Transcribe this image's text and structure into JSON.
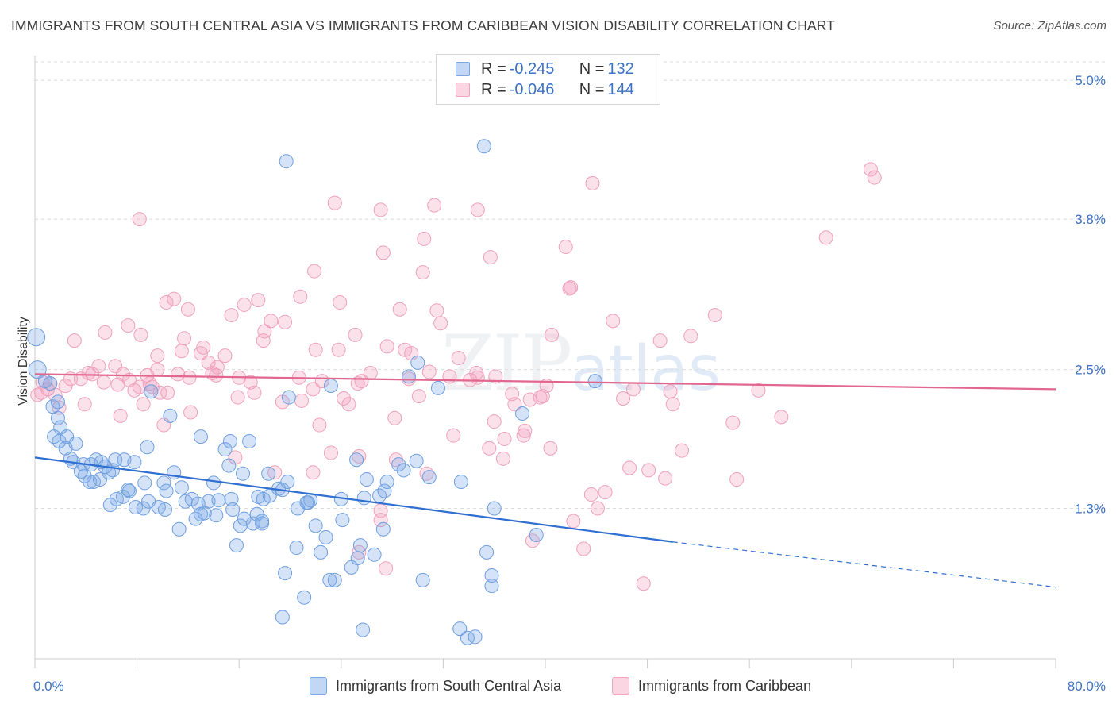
{
  "title": "IMMIGRANTS FROM SOUTH CENTRAL ASIA VS IMMIGRANTS FROM CARIBBEAN VISION DISABILITY CORRELATION CHART",
  "source": "Source: ZipAtlas.com",
  "watermark": {
    "zip": "ZIP",
    "atlas": "atlas"
  },
  "legend": {
    "rows": [
      {
        "r_label": "R = ",
        "r_value": "-0.245",
        "n_label": "N = ",
        "n_value": "132",
        "color": "#7aa7e6"
      },
      {
        "r_label": "R = ",
        "r_value": "-0.046",
        "n_label": "N = ",
        "n_value": "144",
        "color": "#f2a3bd"
      }
    ]
  },
  "bottom_legend": {
    "items": [
      {
        "label": "Immigrants from South Central Asia",
        "color": "#7aa7e6"
      },
      {
        "label": "Immigrants from Caribbean",
        "color": "#f2a3bd"
      }
    ]
  },
  "chart_data": {
    "type": "scatter",
    "title": "IMMIGRANTS FROM SOUTH CENTRAL ASIA VS IMMIGRANTS FROM CARIBBEAN VISION DISABILITY CORRELATION CHART",
    "ylabel": "Vision Disability",
    "xlabel": "",
    "xlim": [
      0,
      80
    ],
    "ylim": [
      0,
      5.2
    ],
    "x_tick_labels": [
      "0.0%",
      "80.0%"
    ],
    "y_ticks": [
      1.3,
      2.5,
      3.8,
      5.0
    ],
    "y_tick_labels": [
      "1.3%",
      "2.5%",
      "3.8%",
      "5.0%"
    ],
    "grid": true,
    "legend_position": "top-center",
    "colors": {
      "blue": "#5b8fd9",
      "pink": "#ee8fb0",
      "blue_line": "#2f6fd1",
      "pink_line": "#e2678f"
    },
    "series": [
      {
        "name": "Immigrants from South Central Asia",
        "color": "#7aa7e6",
        "trend": {
          "x_start": 0,
          "y_start": 1.74,
          "x_end": 50,
          "y_end": 1.01,
          "x_dash_end": 80,
          "y_dash_end": 0.62
        },
        "points": [
          [
            0.1,
            2.78
          ],
          [
            0.2,
            2.5
          ],
          [
            0.8,
            2.4
          ],
          [
            1.2,
            2.38
          ],
          [
            1.4,
            2.18
          ],
          [
            1.8,
            2.22
          ],
          [
            1.5,
            1.92
          ],
          [
            2.0,
            2.0
          ],
          [
            1.9,
            1.88
          ],
          [
            2.5,
            1.92
          ],
          [
            1.8,
            2.08
          ],
          [
            2.4,
            1.82
          ],
          [
            3.2,
            1.86
          ],
          [
            2.8,
            1.73
          ],
          [
            3.0,
            1.7
          ],
          [
            3.6,
            1.62
          ],
          [
            3.9,
            1.58
          ],
          [
            4.3,
            1.53
          ],
          [
            4.6,
            1.53
          ],
          [
            3.8,
            1.68
          ],
          [
            4.8,
            1.72
          ],
          [
            5.2,
            1.7
          ],
          [
            5.5,
            1.66
          ],
          [
            5.8,
            1.61
          ],
          [
            6.1,
            1.63
          ],
          [
            6.3,
            1.72
          ],
          [
            7.0,
            1.72
          ],
          [
            7.8,
            1.7
          ],
          [
            5.1,
            1.55
          ],
          [
            4.4,
            1.68
          ],
          [
            5.9,
            1.33
          ],
          [
            6.4,
            1.38
          ],
          [
            6.9,
            1.4
          ],
          [
            7.4,
            1.45
          ],
          [
            7.9,
            1.31
          ],
          [
            7.3,
            1.46
          ],
          [
            8.5,
            1.3
          ],
          [
            8.9,
            1.36
          ],
          [
            8.6,
            1.52
          ],
          [
            8.8,
            1.83
          ],
          [
            9.1,
            2.31
          ],
          [
            9.7,
            1.31
          ],
          [
            10.2,
            1.29
          ],
          [
            10.1,
            1.52
          ],
          [
            10.3,
            1.45
          ],
          [
            10.9,
            1.61
          ],
          [
            10.6,
            2.1
          ],
          [
            11.5,
            1.48
          ],
          [
            11.8,
            1.36
          ],
          [
            11.3,
            1.12
          ],
          [
            12.3,
            1.38
          ],
          [
            12.8,
            1.34
          ],
          [
            13.0,
            1.25
          ],
          [
            12.6,
            1.21
          ],
          [
            13.3,
            1.26
          ],
          [
            13.0,
            1.92
          ],
          [
            14.0,
            1.52
          ],
          [
            13.6,
            1.36
          ],
          [
            14.2,
            1.24
          ],
          [
            14.4,
            1.37
          ],
          [
            14.9,
            1.81
          ],
          [
            15.3,
            1.88
          ],
          [
            15.2,
            1.67
          ],
          [
            15.4,
            1.38
          ],
          [
            15.5,
            1.29
          ],
          [
            16.1,
            1.15
          ],
          [
            15.8,
            0.98
          ],
          [
            16.3,
            1.6
          ],
          [
            16.4,
            1.21
          ],
          [
            16.8,
            1.88
          ],
          [
            17.1,
            1.17
          ],
          [
            17.5,
            1.4
          ],
          [
            17.4,
            1.25
          ],
          [
            17.8,
            1.19
          ],
          [
            17.9,
            1.38
          ],
          [
            17.8,
            1.17
          ],
          [
            18.3,
            1.6
          ],
          [
            18.4,
            1.41
          ],
          [
            19.1,
            1.47
          ],
          [
            19.4,
            1.46
          ],
          [
            19.6,
            0.74
          ],
          [
            19.4,
            0.36
          ],
          [
            19.7,
            4.3
          ],
          [
            19.9,
            2.26
          ],
          [
            19.8,
            1.53
          ],
          [
            20.5,
            0.96
          ],
          [
            20.6,
            1.3
          ],
          [
            21.1,
            0.53
          ],
          [
            21.4,
            1.35
          ],
          [
            21.3,
            1.35
          ],
          [
            21.6,
            1.37
          ],
          [
            22.0,
            1.15
          ],
          [
            22.4,
            0.92
          ],
          [
            22.8,
            1.05
          ],
          [
            23.1,
            0.68
          ],
          [
            23.5,
            0.68
          ],
          [
            23.2,
            2.36
          ],
          [
            24.1,
            1.2
          ],
          [
            24.0,
            1.38
          ],
          [
            24.8,
            0.79
          ],
          [
            25.2,
            1.72
          ],
          [
            25.5,
            0.98
          ],
          [
            25.3,
            0.87
          ],
          [
            25.7,
            0.25
          ],
          [
            25.8,
            1.39
          ],
          [
            26.0,
            1.55
          ],
          [
            26.6,
            0.9
          ],
          [
            27.0,
            1.41
          ],
          [
            27.3,
            1.12
          ],
          [
            27.4,
            1.45
          ],
          [
            27.6,
            1.53
          ],
          [
            28.5,
            1.68
          ],
          [
            28.9,
            1.63
          ],
          [
            29.3,
            2.44
          ],
          [
            29.9,
            1.71
          ],
          [
            30.0,
            2.56
          ],
          [
            30.4,
            0.68
          ],
          [
            30.9,
            1.57
          ],
          [
            31.6,
            2.34
          ],
          [
            33.3,
            0.26
          ],
          [
            33.4,
            1.53
          ],
          [
            33.9,
            0.18
          ],
          [
            34.5,
            0.19
          ],
          [
            35.2,
            4.43
          ],
          [
            35.4,
            0.92
          ],
          [
            35.8,
            0.63
          ],
          [
            35.8,
            0.72
          ],
          [
            36.0,
            1.3
          ],
          [
            38.2,
            2.12
          ],
          [
            39.3,
            1.07
          ],
          [
            43.9,
            2.4
          ]
        ]
      },
      {
        "name": "Immigrants from Caribbean",
        "color": "#f2a3bd",
        "trend": {
          "x_start": 0,
          "y_start": 2.46,
          "x_end": 80,
          "y_end": 2.33
        },
        "points": [
          [
            0.2,
            2.28
          ],
          [
            0.5,
            2.3
          ],
          [
            0.6,
            2.39
          ],
          [
            1.2,
            2.38
          ],
          [
            1.0,
            2.33
          ],
          [
            1.6,
            2.28
          ],
          [
            1.9,
            2.17
          ],
          [
            2.4,
            2.36
          ],
          [
            2.8,
            2.42
          ],
          [
            3.1,
            2.75
          ],
          [
            3.6,
            2.42
          ],
          [
            3.9,
            2.2
          ],
          [
            4.2,
            2.47
          ],
          [
            4.5,
            2.46
          ],
          [
            5.0,
            2.53
          ],
          [
            5.4,
            2.39
          ],
          [
            5.5,
            2.82
          ],
          [
            6.3,
            2.53
          ],
          [
            6.5,
            2.37
          ],
          [
            6.7,
            2.1
          ],
          [
            6.9,
            2.46
          ],
          [
            7.3,
            2.88
          ],
          [
            7.4,
            2.41
          ],
          [
            7.8,
            2.32
          ],
          [
            8.2,
            2.35
          ],
          [
            8.2,
            3.8
          ],
          [
            8.3,
            2.8
          ],
          [
            8.5,
            2.2
          ],
          [
            8.8,
            2.45
          ],
          [
            9.0,
            2.38
          ],
          [
            9.2,
            2.35
          ],
          [
            9.6,
            2.5
          ],
          [
            9.6,
            2.62
          ],
          [
            9.8,
            2.3
          ],
          [
            10.1,
            2.02
          ],
          [
            10.4,
            2.3
          ],
          [
            10.3,
            3.08
          ],
          [
            10.9,
            3.11
          ],
          [
            11.2,
            2.46
          ],
          [
            11.5,
            2.66
          ],
          [
            11.7,
            2.77
          ],
          [
            12.0,
            3.02
          ],
          [
            12.1,
            2.43
          ],
          [
            12.2,
            2.13
          ],
          [
            13.0,
            2.64
          ],
          [
            13.2,
            2.69
          ],
          [
            13.6,
            2.56
          ],
          [
            13.9,
            2.47
          ],
          [
            14.2,
            2.45
          ],
          [
            14.3,
            2.52
          ],
          [
            14.9,
            2.62
          ],
          [
            15.4,
            2.97
          ],
          [
            15.7,
            1.74
          ],
          [
            15.9,
            2.26
          ],
          [
            16.0,
            2.43
          ],
          [
            16.4,
            3.06
          ],
          [
            16.9,
            2.39
          ],
          [
            17.2,
            2.3
          ],
          [
            17.5,
            3.1
          ],
          [
            17.9,
            2.75
          ],
          [
            18.0,
            2.83
          ],
          [
            18.5,
            2.92
          ],
          [
            18.8,
            1.61
          ],
          [
            19.4,
            2.22
          ],
          [
            19.6,
            2.91
          ],
          [
            20.7,
            2.43
          ],
          [
            20.8,
            3.13
          ],
          [
            20.9,
            2.23
          ],
          [
            21.8,
            2.33
          ],
          [
            21.8,
            1.61
          ],
          [
            21.9,
            3.35
          ],
          [
            22.0,
            2.67
          ],
          [
            22.3,
            2.02
          ],
          [
            22.5,
            2.4
          ],
          [
            23.2,
            1.78
          ],
          [
            23.5,
            3.94
          ],
          [
            23.9,
            3.08
          ],
          [
            23.8,
            2.67
          ],
          [
            24.6,
            2.2
          ],
          [
            24.2,
            2.25
          ],
          [
            25.1,
            2.8
          ],
          [
            25.3,
            2.38
          ],
          [
            25.4,
            1.75
          ],
          [
            25.4,
            0.92
          ],
          [
            25.6,
            2.4
          ],
          [
            26.3,
            2.47
          ],
          [
            27.1,
            1.28
          ],
          [
            27.1,
            1.2
          ],
          [
            27.1,
            3.88
          ],
          [
            27.3,
            3.51
          ],
          [
            27.5,
            0.78
          ],
          [
            27.6,
            2.7
          ],
          [
            28.2,
            2.08
          ],
          [
            28.3,
            1.72
          ],
          [
            28.6,
            3.02
          ],
          [
            29.0,
            2.67
          ],
          [
            29.5,
            2.64
          ],
          [
            29.3,
            2.42
          ],
          [
            30.1,
            2.27
          ],
          [
            30.4,
            3.34
          ],
          [
            30.5,
            3.63
          ],
          [
            30.7,
            1.6
          ],
          [
            30.9,
            2.48
          ],
          [
            31.3,
            3.92
          ],
          [
            31.5,
            3.01
          ],
          [
            31.8,
            2.9
          ],
          [
            32.5,
            2.44
          ],
          [
            32.8,
            1.93
          ],
          [
            33.2,
            2.6
          ],
          [
            34.1,
            2.41
          ],
          [
            34.6,
            2.47
          ],
          [
            34.7,
            2.43
          ],
          [
            34.7,
            3.88
          ],
          [
            35.6,
            1.82
          ],
          [
            35.7,
            3.47
          ],
          [
            36.0,
            2.05
          ],
          [
            36.1,
            2.44
          ],
          [
            36.7,
            1.73
          ],
          [
            36.8,
            1.9
          ],
          [
            37.4,
            2.29
          ],
          [
            37.6,
            2.2
          ],
          [
            38.3,
            1.93
          ],
          [
            38.4,
            1.97
          ],
          [
            38.8,
            2.24
          ],
          [
            39.0,
            1.02
          ],
          [
            39.6,
            2.26
          ],
          [
            39.8,
            2.27
          ],
          [
            40.1,
            2.36
          ],
          [
            40.4,
            1.82
          ],
          [
            40.5,
            2.8
          ],
          [
            41.6,
            3.56
          ],
          [
            41.9,
            3.2
          ],
          [
            42.0,
            3.21
          ],
          [
            42.2,
            1.19
          ],
          [
            43.0,
            0.95
          ],
          [
            43.6,
            1.42
          ],
          [
            43.7,
            4.11
          ],
          [
            44.1,
            1.3
          ],
          [
            44.7,
            1.44
          ],
          [
            45.3,
            2.92
          ],
          [
            46.1,
            2.25
          ],
          [
            46.9,
            2.33
          ],
          [
            46.6,
            1.65
          ],
          [
            47.7,
            0.65
          ],
          [
            48.1,
            1.63
          ],
          [
            49.0,
            2.75
          ],
          [
            49.4,
            1.56
          ],
          [
            49.8,
            2.31
          ],
          [
            50.0,
            2.2
          ],
          [
            50.7,
            1.8
          ],
          [
            51.4,
            2.79
          ],
          [
            53.3,
            2.97
          ],
          [
            54.7,
            2.04
          ],
          [
            55.0,
            1.55
          ],
          [
            56.7,
            2.32
          ],
          [
            58.5,
            2.09
          ],
          [
            62.0,
            3.64
          ],
          [
            65.5,
            4.23
          ],
          [
            65.8,
            4.16
          ]
        ]
      }
    ]
  }
}
